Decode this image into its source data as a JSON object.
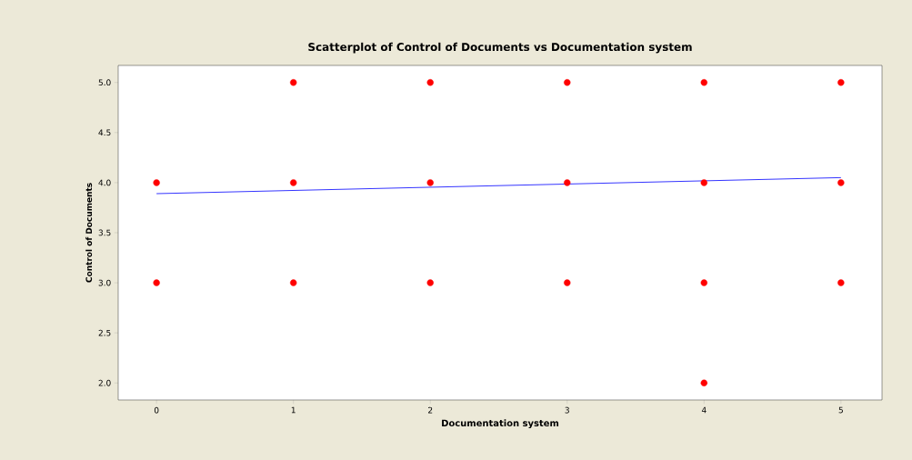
{
  "chart_data": {
    "type": "scatter",
    "title": "Scatterplot of Control of Documents vs Documentation system",
    "xlabel": "Documentation system",
    "ylabel": "Control of Documents",
    "xlim": [
      -0.28,
      5.3
    ],
    "ylim": [
      1.83,
      5.17
    ],
    "xticks": [
      0,
      1,
      2,
      3,
      4,
      5
    ],
    "yticks": [
      {
        "value": 2,
        "label": "2.0"
      },
      {
        "value": 2.5,
        "label": "2.5"
      },
      {
        "value": 3,
        "label": "3.0"
      },
      {
        "value": 3.5,
        "label": "3.5"
      },
      {
        "value": 4,
        "label": "4.0"
      },
      {
        "value": 4.5,
        "label": "4.5"
      },
      {
        "value": 5,
        "label": "5.0"
      }
    ],
    "marker": "circle",
    "series": [
      {
        "color": "#ff0000",
        "x": [
          0,
          0,
          1,
          1,
          1,
          2,
          2,
          2,
          3,
          3,
          3,
          4,
          4,
          4,
          4,
          5,
          5,
          5
        ],
        "values": [
          4,
          3,
          5,
          4,
          3,
          5,
          4,
          3,
          5,
          4,
          3,
          5,
          4,
          3,
          2,
          5,
          4,
          3
        ]
      },
      {
        "type": "line",
        "marker": "none",
        "color": "#0000ff",
        "x": [
          0,
          5
        ],
        "values": [
          3.89,
          4.05
        ]
      }
    ]
  }
}
